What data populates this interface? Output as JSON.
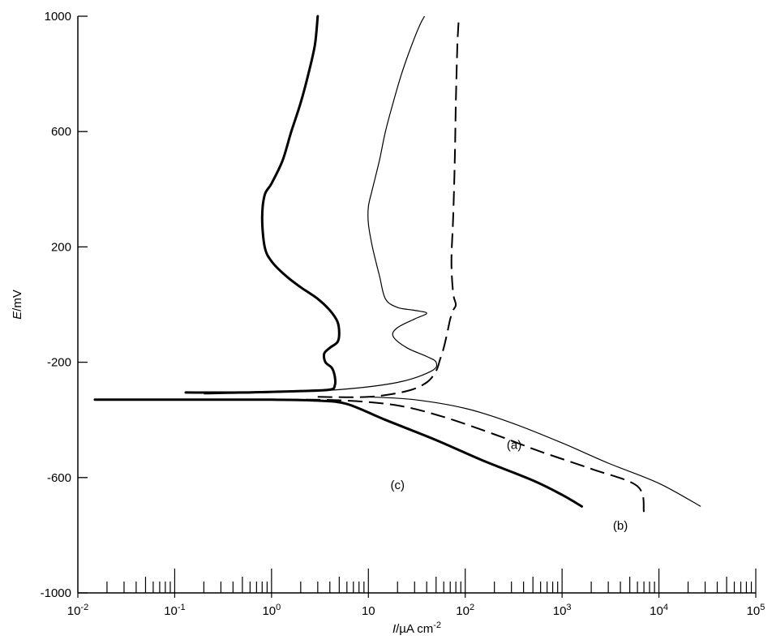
{
  "chart_data": {
    "type": "line",
    "title": "",
    "xlabel_parts": [
      "I",
      "/µA cm",
      "-2"
    ],
    "ylabel_parts": [
      "E",
      "/mV"
    ],
    "x_scale": "log",
    "xlim": [
      0.01,
      100000
    ],
    "ylim": [
      -1000,
      1000
    ],
    "x_ticks": [
      {
        "value": 0.01,
        "base": "10",
        "exp": "-2"
      },
      {
        "value": 0.1,
        "base": "10",
        "exp": "-1"
      },
      {
        "value": 1,
        "base": "10",
        "exp": "0"
      },
      {
        "value": 10,
        "base": "10",
        "exp": ""
      },
      {
        "value": 100,
        "base": "10",
        "exp": "2"
      },
      {
        "value": 1000,
        "base": "10",
        "exp": "3"
      },
      {
        "value": 10000,
        "base": "10",
        "exp": "4"
      },
      {
        "value": 100000,
        "base": "10",
        "exp": "5"
      }
    ],
    "y_ticks": [
      {
        "value": 1000,
        "label": "1000"
      },
      {
        "value": 600,
        "label": "600"
      },
      {
        "value": 200,
        "label": "200"
      },
      {
        "value": -200,
        "label": "-200"
      },
      {
        "value": -600,
        "label": "-600"
      },
      {
        "value": -1000,
        "label": "-1000"
      }
    ],
    "grid": false,
    "series": [
      {
        "id": "a",
        "label": "(a)",
        "style": "thin",
        "label_pos": {
          "x": 320,
          "y": -500
        },
        "cathodic": [
          [
            10,
            -320
          ],
          [
            30,
            -330
          ],
          [
            100,
            -360
          ],
          [
            300,
            -410
          ],
          [
            1000,
            -480
          ],
          [
            3000,
            -550
          ],
          [
            10000,
            -620
          ],
          [
            27000,
            -700
          ]
        ],
        "anodic": [
          [
            0.2,
            -310
          ],
          [
            1,
            -305
          ],
          [
            5,
            -295
          ],
          [
            20,
            -270
          ],
          [
            45,
            -230
          ],
          [
            50,
            -200
          ],
          [
            40,
            -180
          ],
          [
            25,
            -150
          ],
          [
            18,
            -110
          ],
          [
            20,
            -80
          ],
          [
            30,
            -50
          ],
          [
            40,
            -30
          ],
          [
            30,
            -20
          ],
          [
            20,
            -10
          ],
          [
            15,
            20
          ],
          [
            13,
            100
          ],
          [
            11,
            200
          ],
          [
            10,
            280
          ],
          [
            10,
            340
          ],
          [
            11,
            400
          ],
          [
            13,
            500
          ],
          [
            15,
            600
          ],
          [
            18,
            700
          ],
          [
            22,
            800
          ],
          [
            28,
            900
          ],
          [
            34,
            970
          ],
          [
            38,
            1000
          ]
        ]
      },
      {
        "id": "b",
        "label": "(b)",
        "style": "dashed",
        "label_pos": {
          "x": 4000,
          "y": -780
        },
        "cathodic": [
          [
            0.015,
            -330
          ],
          [
            0.1,
            -330
          ],
          [
            1,
            -330
          ],
          [
            5,
            -332
          ],
          [
            20,
            -350
          ],
          [
            60,
            -390
          ],
          [
            200,
            -450
          ],
          [
            600,
            -510
          ],
          [
            2000,
            -570
          ],
          [
            6000,
            -630
          ],
          [
            7000,
            -720
          ]
        ],
        "anodic": [
          [
            3,
            -320
          ],
          [
            10,
            -320
          ],
          [
            25,
            -300
          ],
          [
            40,
            -270
          ],
          [
            50,
            -230
          ],
          [
            55,
            -190
          ],
          [
            60,
            -150
          ],
          [
            65,
            -100
          ],
          [
            70,
            -50
          ],
          [
            75,
            -20
          ],
          [
            80,
            0
          ],
          [
            75,
            40
          ],
          [
            72,
            150
          ],
          [
            75,
            300
          ],
          [
            78,
            500
          ],
          [
            80,
            700
          ],
          [
            83,
            900
          ],
          [
            86,
            1000
          ]
        ]
      },
      {
        "id": "c",
        "label": "(c)",
        "style": "thick",
        "label_pos": {
          "x": 20,
          "y": -640
        },
        "cathodic": [
          [
            0.015,
            -330
          ],
          [
            0.1,
            -330
          ],
          [
            1,
            -330
          ],
          [
            3,
            -333
          ],
          [
            6,
            -345
          ],
          [
            15,
            -400
          ],
          [
            50,
            -470
          ],
          [
            150,
            -540
          ],
          [
            500,
            -610
          ],
          [
            1000,
            -660
          ],
          [
            1600,
            -700
          ]
        ],
        "anodic": [
          [
            0.13,
            -305
          ],
          [
            0.5,
            -305
          ],
          [
            2,
            -300
          ],
          [
            4,
            -295
          ],
          [
            4.5,
            -280
          ],
          [
            4.5,
            -250
          ],
          [
            4.2,
            -220
          ],
          [
            3.6,
            -200
          ],
          [
            3.5,
            -170
          ],
          [
            4,
            -150
          ],
          [
            4.8,
            -130
          ],
          [
            5,
            -100
          ],
          [
            4.8,
            -60
          ],
          [
            4,
            -20
          ],
          [
            3,
            20
          ],
          [
            2,
            60
          ],
          [
            1.4,
            100
          ],
          [
            1,
            150
          ],
          [
            0.85,
            200
          ],
          [
            0.8,
            300
          ],
          [
            0.85,
            380
          ],
          [
            1,
            420
          ],
          [
            1.3,
            500
          ],
          [
            1.6,
            600
          ],
          [
            2,
            700
          ],
          [
            2.4,
            800
          ],
          [
            2.8,
            900
          ],
          [
            3,
            1000
          ]
        ]
      }
    ]
  }
}
